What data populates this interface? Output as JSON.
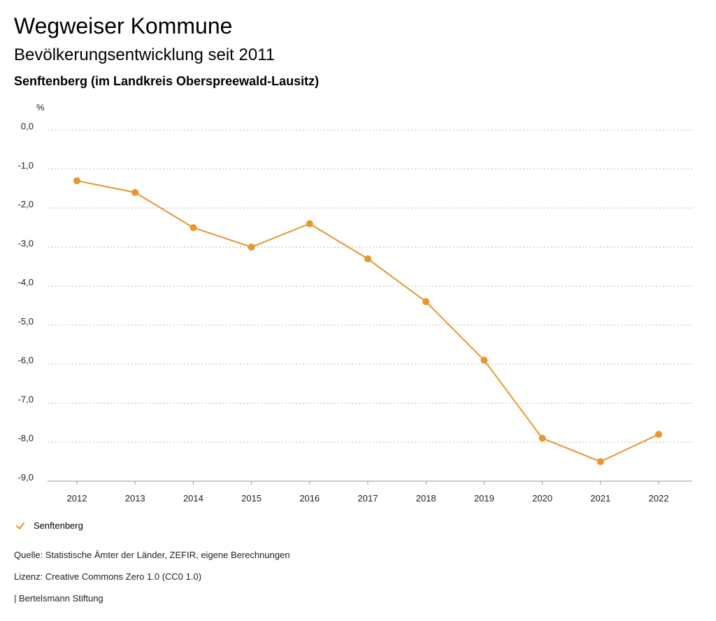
{
  "header": {
    "title": "Wegweiser Kommune",
    "subtitle": "Bevölkerungsentwicklung seit 2011",
    "region": "Senftenberg (im Landkreis Oberspreewald-Lausitz)"
  },
  "chart_data": {
    "type": "line",
    "ylabel": "%",
    "x": [
      "2012",
      "2013",
      "2014",
      "2015",
      "2016",
      "2017",
      "2018",
      "2019",
      "2020",
      "2021",
      "2022"
    ],
    "ylim": [
      -9.0,
      0.0
    ],
    "yticks": [
      "0,0",
      "-1,0",
      "-2,0",
      "-3,0",
      "-4,0",
      "-5,0",
      "-6,0",
      "-7,0",
      "-8,0",
      "-9,0"
    ],
    "grid": true,
    "legend": "bottom-left",
    "series": [
      {
        "name": "Senftenberg",
        "color": "#E8962E",
        "values": [
          -1.3,
          -1.6,
          -2.5,
          -3.0,
          -2.4,
          -3.3,
          -4.4,
          -5.9,
          -7.9,
          -8.5,
          -7.8
        ]
      }
    ]
  },
  "legend": {
    "label": "Senftenberg",
    "icon": "check-icon"
  },
  "footer": {
    "source": "Quelle: Statistische Ämter der Länder, ZEFIR, eigene Berechnungen",
    "license": "Lizenz: Creative Commons Zero 1.0 (CC0 1.0)",
    "brand": "| Bertelsmann Stiftung"
  }
}
